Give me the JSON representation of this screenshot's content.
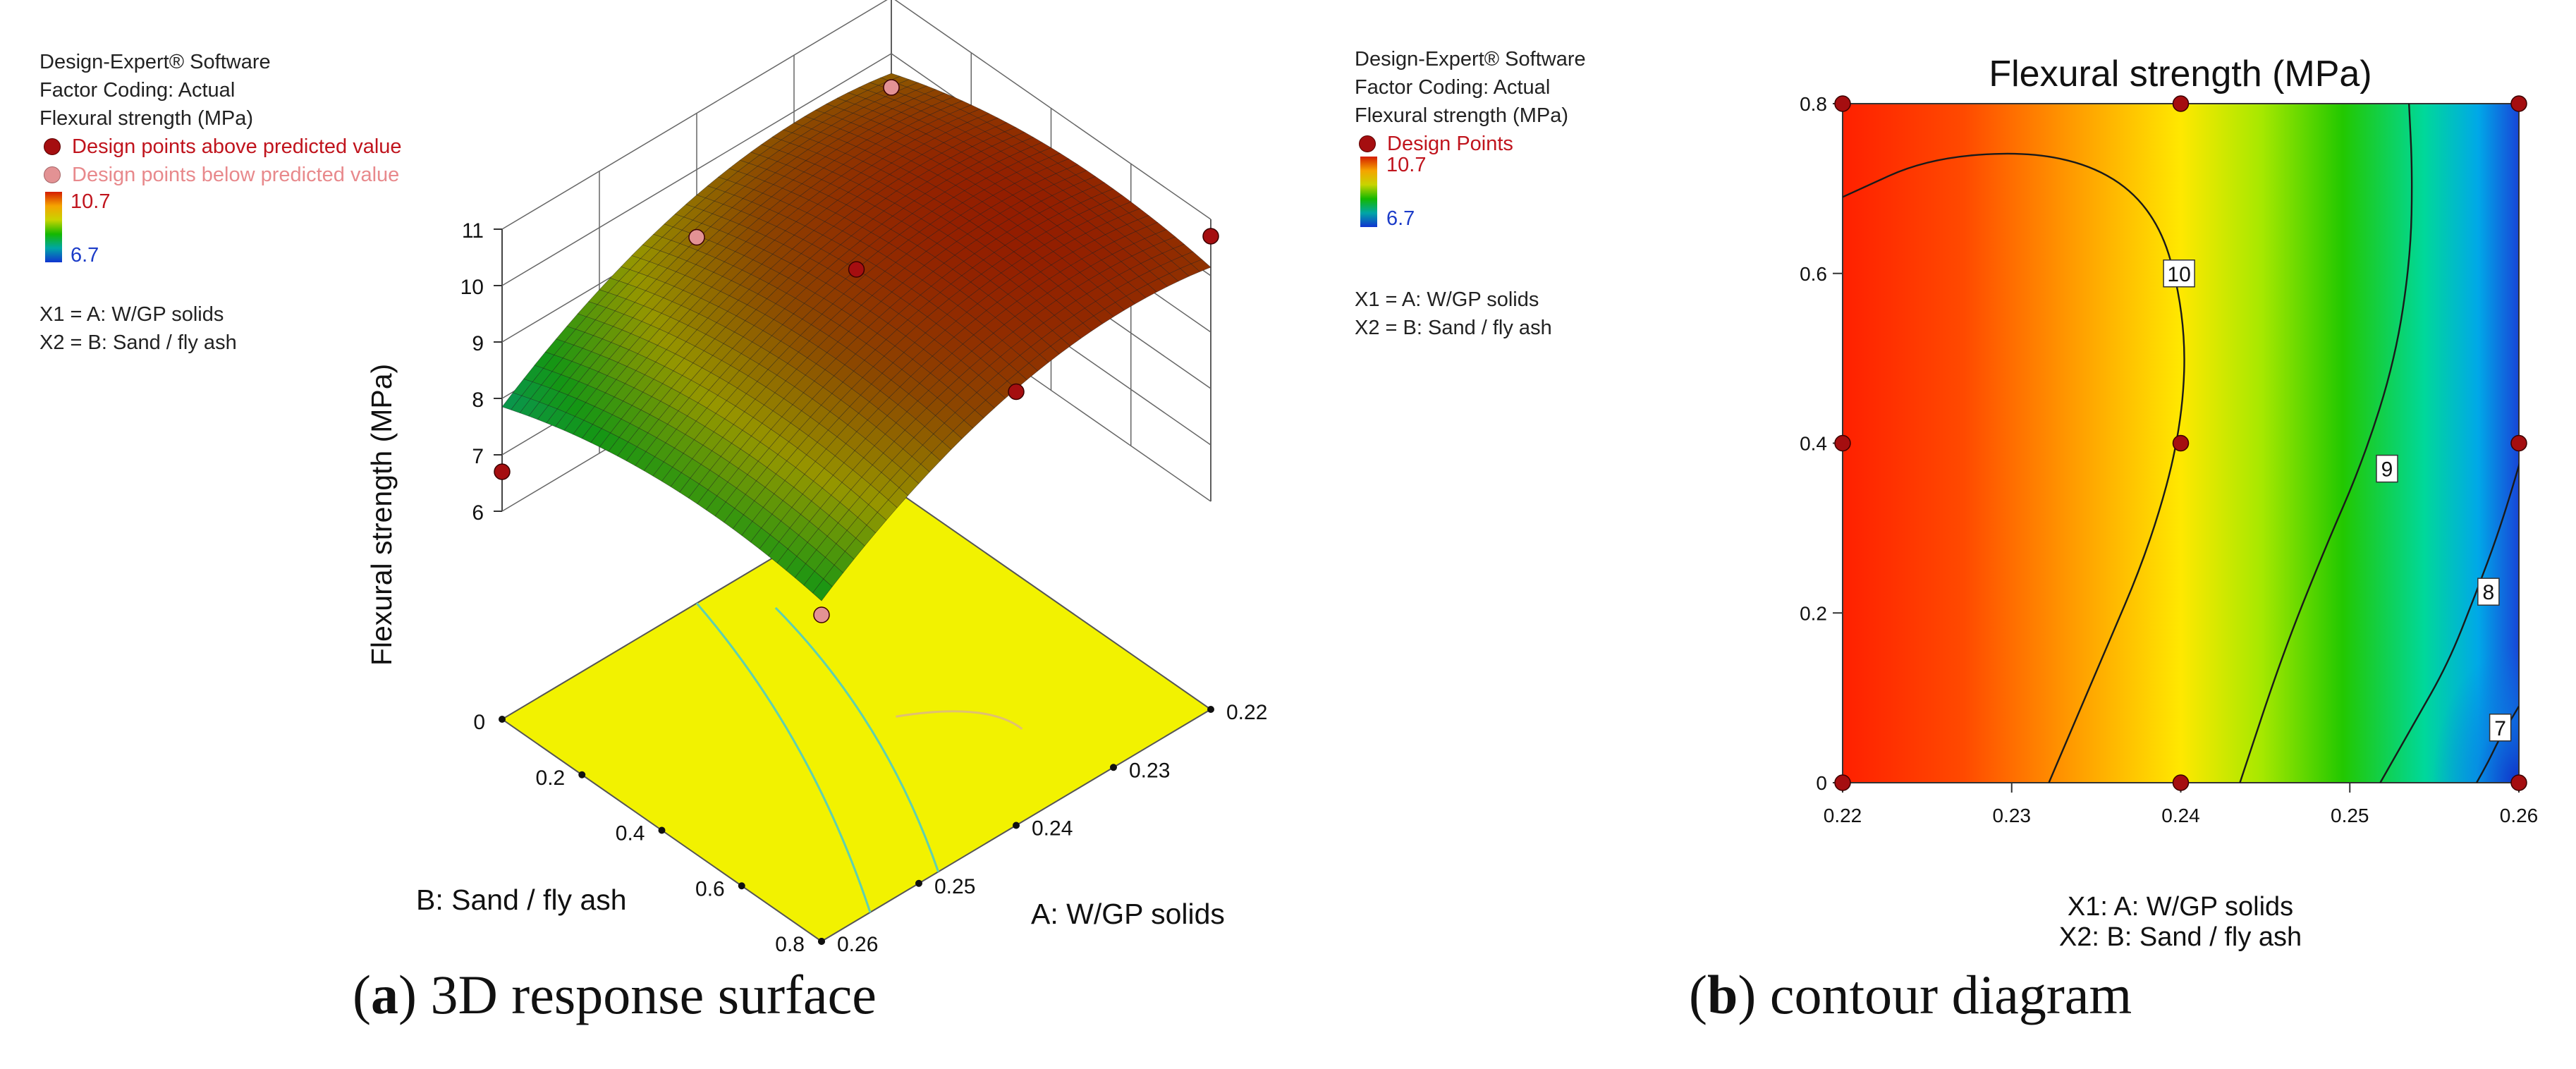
{
  "left_legend": {
    "software": "Design-Expert® Software",
    "coding": "Factor Coding: Actual",
    "response": "Flexural strength (MPa)",
    "above_label": "Design points above predicted value",
    "below_label": "Design points below predicted value",
    "cbar_max": "10.7",
    "cbar_min": "6.7",
    "x1": "X1 = A: W/GP solids",
    "x2": "X2 = B: Sand / fly ash"
  },
  "right_legend": {
    "software": "Design-Expert® Software",
    "coding": "Factor Coding: Actual",
    "response": "Flexural strength (MPa)",
    "points_label": "Design Points",
    "cbar_max": "10.7",
    "cbar_min": "6.7",
    "x1": "X1 = A: W/GP solids",
    "x2": "X2 = B: Sand / fly ash"
  },
  "captions": {
    "a_letter": "a",
    "a_text": " 3D response surface",
    "b_letter": "b",
    "b_text": " contour diagram"
  },
  "colors": {
    "point_above": "#a50e10",
    "point_below": "#e39294",
    "floor": "#f2f200",
    "contour": "#1a1a1a"
  },
  "chart_data": [
    {
      "type": "surface3d",
      "title": "",
      "xlabel": "A: W/GP solids",
      "ylabel": "B: Sand / fly ash",
      "zlabel": "Flexural strength (MPa)",
      "xlim": [
        0.22,
        0.26
      ],
      "ylim": [
        0,
        0.8
      ],
      "zlim": [
        6,
        11
      ],
      "x_ticks": [
        "0.22",
        "0.23",
        "0.24",
        "0.25",
        "0.26"
      ],
      "y_ticks": [
        "0",
        "0.2",
        "0.4",
        "0.6",
        "0.8"
      ],
      "z_ticks": [
        "6",
        "7",
        "8",
        "9",
        "10",
        "11"
      ],
      "colorbar_range": [
        6.7,
        10.7
      ],
      "model": "z = 10.2 - 0.9*(a-0.24)/0.02 - 0.8*((a-0.24)/0.02)^2 + 0.25*(b-0.4)/0.4 - 0.4*((b-0.4)/0.4)^2",
      "design_points": [
        {
          "a": 0.22,
          "b": 0.8,
          "z": 10.7,
          "relation": "above"
        },
        {
          "a": 0.24,
          "b": 0.8,
          "z": 10.0,
          "relation": "above"
        },
        {
          "a": 0.26,
          "b": 0.8,
          "z": 8.1,
          "relation": "below"
        },
        {
          "a": 0.24,
          "b": 0.4,
          "z": 10.2,
          "relation": "above"
        },
        {
          "a": 0.22,
          "b": 0.0,
          "z": 9.4,
          "relation": "below"
        },
        {
          "a": 0.24,
          "b": 0.0,
          "z": 8.8,
          "relation": "below"
        },
        {
          "a": 0.26,
          "b": 0.0,
          "z": 6.7,
          "relation": "above"
        }
      ]
    },
    {
      "type": "contour",
      "title": "Flexural strength (MPa)",
      "xlabel": "X1: A: W/GP solids",
      "ylabel": "X2: B: Sand / fly ash",
      "xlim": [
        0.22,
        0.26
      ],
      "ylim": [
        0,
        0.8
      ],
      "x_ticks": [
        "0.22",
        "0.23",
        "0.24",
        "0.25",
        "0.26"
      ],
      "y_ticks": [
        "0",
        "0.2",
        "0.4",
        "0.6",
        "0.8"
      ],
      "contour_levels": [
        {
          "level": "10",
          "path": [
            [
              0.22,
              0.69
            ],
            [
              0.2255,
              0.74
            ],
            [
              0.2335,
              0.742
            ],
            [
              0.2385,
              0.68
            ],
            [
              0.2403,
              0.55
            ],
            [
              0.2401,
              0.42
            ],
            [
              0.2382,
              0.28
            ],
            [
              0.2352,
              0.14
            ],
            [
              0.2322,
              0.0
            ]
          ],
          "label_at": [
            0.2399,
            0.6
          ]
        },
        {
          "level": "9",
          "path": [
            [
              0.2535,
              0.8
            ],
            [
              0.2537,
              0.72
            ],
            [
              0.2536,
              0.62
            ],
            [
              0.2527,
              0.5
            ],
            [
              0.2508,
              0.38
            ],
            [
              0.2484,
              0.27
            ],
            [
              0.246,
              0.15
            ],
            [
              0.2435,
              0.0
            ]
          ],
          "label_at": [
            0.2522,
            0.37
          ]
        },
        {
          "level": "8",
          "path": [
            [
              0.2604,
              0.4
            ],
            [
              0.2589,
              0.3
            ],
            [
              0.2574,
              0.22
            ],
            [
              0.2558,
              0.14
            ],
            [
              0.2538,
              0.07
            ],
            [
              0.2518,
              0.0
            ]
          ],
          "label_at": [
            0.2582,
            0.225
          ]
        },
        {
          "level": "7",
          "path": [
            [
              0.26,
              0.09
            ],
            [
              0.2594,
              0.07
            ],
            [
              0.2588,
              0.05
            ],
            [
              0.2582,
              0.025
            ],
            [
              0.2575,
              0.0
            ]
          ],
          "label_at": [
            0.2589,
            0.065
          ]
        }
      ],
      "design_points": [
        {
          "a": 0.22,
          "b": 0.8
        },
        {
          "a": 0.24,
          "b": 0.8
        },
        {
          "a": 0.26,
          "b": 0.8
        },
        {
          "a": 0.22,
          "b": 0.4
        },
        {
          "a": 0.24,
          "b": 0.4
        },
        {
          "a": 0.26,
          "b": 0.4
        },
        {
          "a": 0.22,
          "b": 0.0
        },
        {
          "a": 0.24,
          "b": 0.0
        },
        {
          "a": 0.26,
          "b": 0.0
        }
      ]
    }
  ]
}
